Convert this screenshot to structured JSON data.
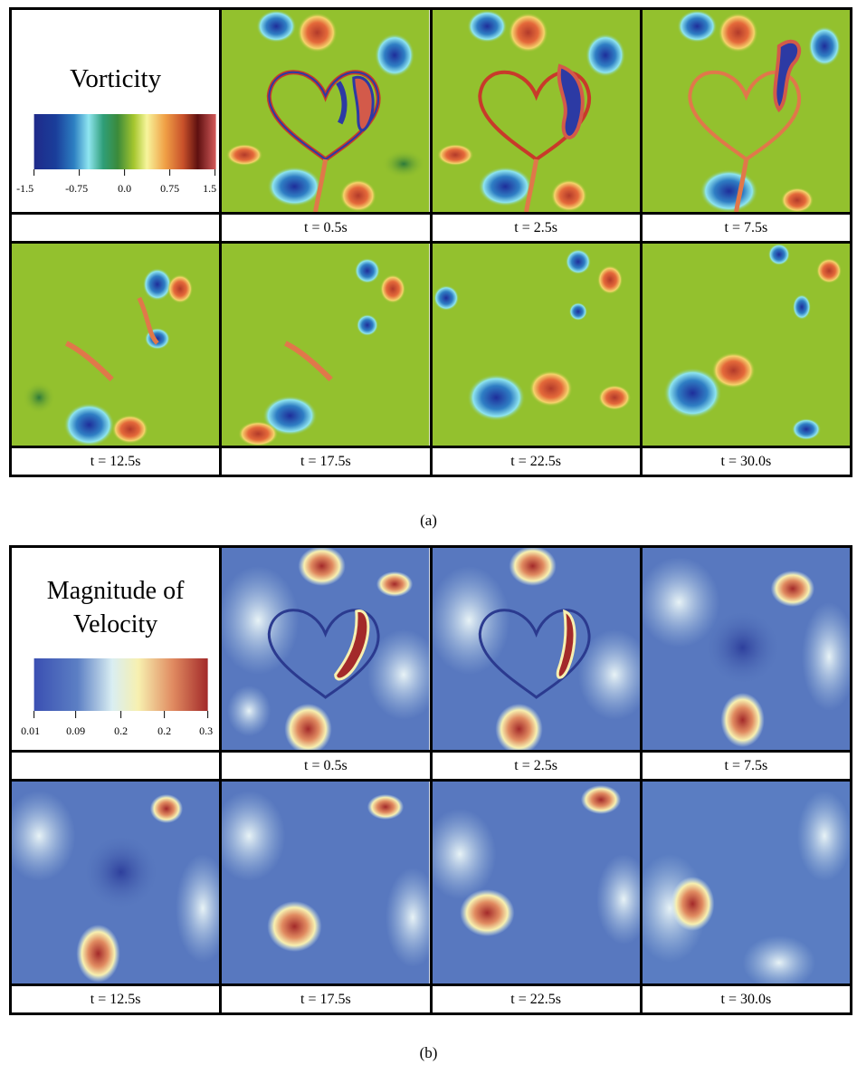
{
  "figure_a": {
    "title": "Vorticity",
    "ticks": [
      "-1.5",
      "-0.75",
      "0.0",
      "0.75",
      "1.5"
    ],
    "times": [
      "t = 0.5s",
      "t = 2.5s",
      "t = 7.5s",
      "t = 12.5s",
      "t = 17.5s",
      "t = 22.5s",
      "t = 30.0s"
    ],
    "caption": "(a)"
  },
  "figure_b": {
    "title_line1": "Magnitude of",
    "title_line2": "Velocity",
    "ticks": [
      "0.01",
      "0.09",
      "0.2",
      "0.2",
      "0.3"
    ],
    "times": [
      "t = 0.5s",
      "t = 2.5s",
      "t = 7.5s",
      "t = 12.5s",
      "t = 17.5s",
      "t = 22.5s",
      "t = 30.0s"
    ],
    "caption": "(b)"
  },
  "colors": {
    "vort_bg": "#93c12e",
    "vel_bg": "#4f6fb8",
    "frame": "#000000"
  }
}
